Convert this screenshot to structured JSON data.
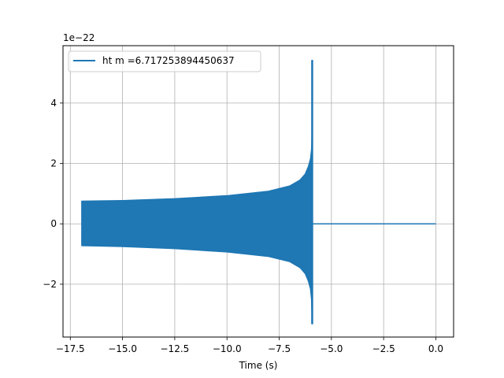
{
  "chart_data": {
    "type": "line",
    "title": "",
    "xlabel": "Time (s)",
    "ylabel": "",
    "y_offset_label": "1e−22",
    "xlim": [
      -17.85,
      0.85
    ],
    "ylim": [
      -3.75,
      5.9
    ],
    "xticks": [
      {
        "value": -17.5,
        "label": "−17.5"
      },
      {
        "value": -15.0,
        "label": "−15.0"
      },
      {
        "value": -12.5,
        "label": "−12.5"
      },
      {
        "value": -10.0,
        "label": "−10.0"
      },
      {
        "value": -7.5,
        "label": "−7.5"
      },
      {
        "value": -5.0,
        "label": "−5.0"
      },
      {
        "value": -2.5,
        "label": "−2.5"
      },
      {
        "value": 0.0,
        "label": "0.0"
      }
    ],
    "yticks": [
      {
        "value": -2,
        "label": "−2"
      },
      {
        "value": 0,
        "label": "0"
      },
      {
        "value": 2,
        "label": "2"
      },
      {
        "value": 4,
        "label": "4"
      }
    ],
    "grid": true,
    "legend_position": "top-left",
    "series": [
      {
        "name": "ht m =6.717253894450637",
        "color": "#1f77b4",
        "kind": "chirp-envelope",
        "upper": {
          "x": [
            -16.95,
            -15.0,
            -12.5,
            -10.0,
            -8.0,
            -7.0,
            -6.5,
            -6.25,
            -6.1,
            -6.0,
            -5.95,
            -5.93,
            -5.92
          ],
          "y": [
            0.75,
            0.77,
            0.83,
            0.93,
            1.08,
            1.25,
            1.45,
            1.65,
            1.9,
            2.15,
            2.45,
            2.8,
            5.4
          ]
        },
        "lower": {
          "x": [
            -16.95,
            -15.0,
            -12.5,
            -10.0,
            -8.0,
            -7.0,
            -6.5,
            -6.25,
            -6.1,
            -6.0,
            -5.95,
            -5.93,
            -5.92
          ],
          "y": [
            -0.72,
            -0.75,
            -0.82,
            -0.93,
            -1.08,
            -1.25,
            -1.45,
            -1.65,
            -1.9,
            -2.15,
            -2.5,
            -2.9,
            -3.3
          ]
        },
        "after_merger": {
          "x": [
            -5.9,
            0.0
          ],
          "y": [
            0.0,
            0.0
          ]
        }
      }
    ]
  }
}
